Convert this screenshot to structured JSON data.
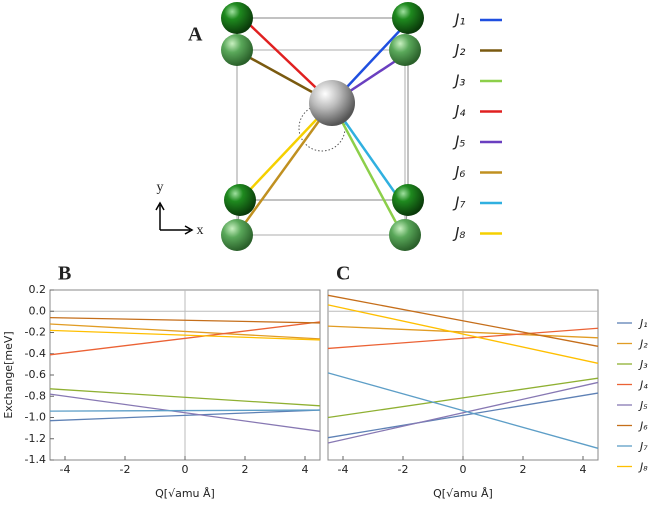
{
  "panel_a": {
    "label": "A",
    "x_axis": "x",
    "y_axis": "y",
    "legend": [
      {
        "label": "J₁",
        "color": "#1f4fe0"
      },
      {
        "label": "J₂",
        "color": "#7a5a10"
      },
      {
        "label": "J₃",
        "color": "#8ccf4a"
      },
      {
        "label": "J₄",
        "color": "#e02020"
      },
      {
        "label": "J₅",
        "color": "#6a3fc0"
      },
      {
        "label": "J₆",
        "color": "#c09020"
      },
      {
        "label": "J₇",
        "color": "#30b0e0"
      },
      {
        "label": "J₈",
        "color": "#f5d000"
      }
    ]
  },
  "chart_data": [
    {
      "type": "line",
      "title": "B",
      "y_label": "Exchange[meV]",
      "x_label": "Q[√amu Å]",
      "x": [
        -4.5,
        4.5
      ],
      "xlim": [
        -4.5,
        4.5
      ],
      "xticks": [
        -4,
        -2,
        0,
        2,
        4
      ],
      "ylim": [
        -1.4,
        0.2
      ],
      "yticks": [
        0.2,
        {
          "value": 0,
          "label": "0.0"
        },
        -0.2,
        -0.4,
        -0.6,
        -0.8,
        {
          "value": -1,
          "label": "-1.0"
        },
        -1.2,
        -1.4
      ],
      "series": [
        {
          "color": "#5e81b5",
          "values": [
            -1.03,
            -0.93
          ]
        },
        {
          "color": "#e19c24",
          "values": [
            -0.12,
            -0.26
          ]
        },
        {
          "color": "#8fb032",
          "values": [
            -0.73,
            -0.89
          ]
        },
        {
          "color": "#eb6235",
          "values": [
            -0.41,
            -0.1
          ]
        },
        {
          "color": "#8778b3",
          "values": [
            -0.78,
            -1.13
          ]
        },
        {
          "color": "#c56e1a",
          "values": [
            -0.06,
            -0.11
          ]
        },
        {
          "color": "#5d9ec7",
          "values": [
            -0.94,
            -0.93
          ]
        },
        {
          "color": "#ffbf00",
          "values": [
            -0.18,
            -0.27
          ]
        }
      ]
    },
    {
      "type": "line",
      "title": "C",
      "x_label": "Q[√amu Å]",
      "x": [
        -4.5,
        4.5
      ],
      "xlim": [
        -4.5,
        4.5
      ],
      "xticks": [
        -4,
        -2,
        0,
        2,
        4
      ],
      "ylim": [
        -1.4,
        0.2
      ],
      "series": [
        {
          "name": "J₁",
          "color": "#5e81b5",
          "values": [
            -1.19,
            -0.77
          ]
        },
        {
          "name": "J₂",
          "color": "#e19c24",
          "values": [
            -0.14,
            -0.25
          ]
        },
        {
          "name": "J₃",
          "color": "#8fb032",
          "values": [
            -1.0,
            -0.63
          ]
        },
        {
          "name": "J₄",
          "color": "#eb6235",
          "values": [
            -0.35,
            -0.16
          ]
        },
        {
          "name": "J₅",
          "color": "#8778b3",
          "values": [
            -1.24,
            -0.67
          ]
        },
        {
          "name": "J₆",
          "color": "#c56e1a",
          "values": [
            0.15,
            -0.33
          ]
        },
        {
          "name": "J₇",
          "color": "#5d9ec7",
          "values": [
            -0.58,
            -1.29
          ]
        },
        {
          "name": "J₈",
          "color": "#ffbf00",
          "values": [
            0.06,
            -0.49
          ]
        }
      ]
    }
  ]
}
